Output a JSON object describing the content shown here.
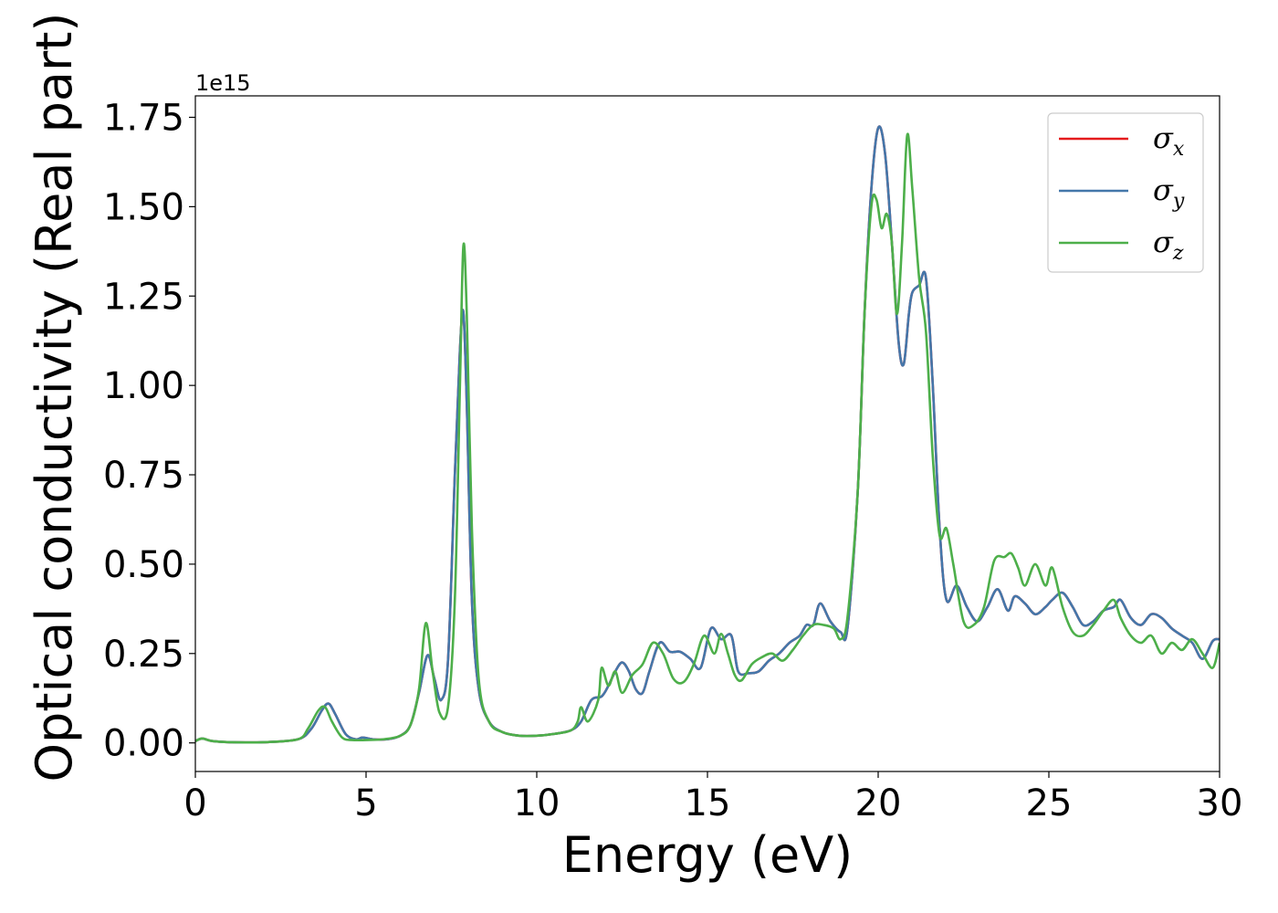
{
  "chart_data": {
    "type": "line",
    "xlabel": "Energy (eV)",
    "ylabel": "Optical conductivity (Real part)",
    "y_offset_text": "1e15",
    "xlim": [
      0,
      30
    ],
    "ylim": [
      -80000000000000.0,
      1810000000000000.0
    ],
    "xticks": [
      0,
      5,
      10,
      15,
      20,
      25,
      30
    ],
    "xtick_labels": [
      "0",
      "5",
      "10",
      "15",
      "20",
      "25",
      "30"
    ],
    "yticks": [
      0,
      250000000000000.0,
      500000000000000.0,
      750000000000000.0,
      1000000000000000.0,
      1250000000000000.0,
      1500000000000000.0,
      1750000000000000.0
    ],
    "ytick_labels": [
      "0.00",
      "0.25",
      "0.50",
      "0.75",
      "1.00",
      "1.25",
      "1.50",
      "1.75"
    ],
    "grid": false,
    "legend_position": "top-right",
    "series": [
      {
        "name": "σ",
        "subscript": "x",
        "color": "#e41a1c",
        "x": [
          0,
          0.2,
          0.5,
          1,
          2,
          3,
          3.4,
          3.7,
          3.9,
          4.1,
          4.4,
          4.7,
          4.9,
          5.2,
          5.6,
          6.0,
          6.3,
          6.55,
          6.8,
          7.0,
          7.2,
          7.4,
          7.6,
          7.75,
          7.85,
          7.95,
          8.1,
          8.3,
          8.6,
          9.0,
          9.5,
          10.0,
          10.5,
          11.0,
          11.3,
          11.6,
          11.9,
          12.1,
          12.3,
          12.5,
          12.7,
          12.9,
          13.1,
          13.3,
          13.6,
          13.9,
          14.2,
          14.5,
          14.8,
          15.1,
          15.4,
          15.7,
          15.9,
          16.2,
          16.5,
          16.8,
          17.1,
          17.4,
          17.7,
          17.9,
          18.1,
          18.3,
          18.6,
          18.9,
          19.1,
          19.4,
          19.6,
          19.8,
          20.0,
          20.2,
          20.4,
          20.6,
          20.75,
          20.9,
          21.0,
          21.2,
          21.4,
          21.6,
          21.8,
          22.0,
          22.3,
          22.6,
          22.9,
          23.2,
          23.5,
          23.8,
          24.0,
          24.3,
          24.6,
          24.9,
          25.1,
          25.4,
          25.7,
          26.0,
          26.3,
          26.6,
          26.9,
          27.1,
          27.4,
          27.7,
          28.0,
          28.3,
          28.6,
          28.9,
          29.2,
          29.5,
          29.8,
          30.0
        ],
        "values": [
          5000000000000.0,
          12000000000000.0,
          5000000000000.0,
          2000000000000.0,
          2000000000000.0,
          10000000000000.0,
          40000000000000.0,
          90000000000000.0,
          110000000000000.0,
          80000000000000.0,
          25000000000000.0,
          10000000000000.0,
          15000000000000.0,
          10000000000000.0,
          10000000000000.0,
          20000000000000.0,
          50000000000000.0,
          140000000000000.0,
          245000000000000.0,
          180000000000000.0,
          120000000000000.0,
          230000000000000.0,
          750000000000000.0,
          1100000000000000.0,
          1205000000000000.0,
          950000000000000.0,
          400000000000000.0,
          150000000000000.0,
          60000000000000.0,
          30000000000000.0,
          20000000000000.0,
          20000000000000.0,
          25000000000000.0,
          35000000000000.0,
          60000000000000.0,
          120000000000000.0,
          130000000000000.0,
          160000000000000.0,
          200000000000000.0,
          225000000000000.0,
          200000000000000.0,
          150000000000000.0,
          140000000000000.0,
          200000000000000.0,
          280000000000000.0,
          255000000000000.0,
          255000000000000.0,
          235000000000000.0,
          210000000000000.0,
          320000000000000.0,
          290000000000000.0,
          300000000000000.0,
          200000000000000.0,
          195000000000000.0,
          200000000000000.0,
          230000000000000.0,
          250000000000000.0,
          280000000000000.0,
          300000000000000.0,
          330000000000000.0,
          330000000000000.0,
          390000000000000.0,
          340000000000000.0,
          310000000000000.0,
          320000000000000.0,
          700000000000000.0,
          1200000000000000.0,
          1550000000000000.0,
          1720000000000000.0,
          1650000000000000.0,
          1400000000000000.0,
          1120000000000000.0,
          1060000000000000.0,
          1200000000000000.0,
          1260000000000000.0,
          1280000000000000.0,
          1300000000000000.0,
          1000000000000000.0,
          600000000000000.0,
          400000000000000.0,
          440000000000000.0,
          380000000000000.0,
          340000000000000.0,
          380000000000000.0,
          430000000000000.0,
          370000000000000.0,
          410000000000000.0,
          390000000000000.0,
          360000000000000.0,
          380000000000000.0,
          400000000000000.0,
          420000000000000.0,
          380000000000000.0,
          330000000000000.0,
          340000000000000.0,
          370000000000000.0,
          380000000000000.0,
          400000000000000.0,
          350000000000000.0,
          330000000000000.0,
          360000000000000.0,
          350000000000000.0,
          320000000000000.0,
          300000000000000.0,
          280000000000000.0,
          235000000000000.0,
          285000000000000.0,
          290000000000000.0
        ]
      },
      {
        "name": "σ",
        "subscript": "y",
        "color": "#4477aa",
        "x": [
          0,
          0.2,
          0.5,
          1,
          2,
          3,
          3.4,
          3.7,
          3.9,
          4.1,
          4.4,
          4.7,
          4.9,
          5.2,
          5.6,
          6.0,
          6.3,
          6.55,
          6.8,
          7.0,
          7.2,
          7.4,
          7.6,
          7.75,
          7.85,
          7.95,
          8.1,
          8.3,
          8.6,
          9.0,
          9.5,
          10.0,
          10.5,
          11.0,
          11.3,
          11.6,
          11.9,
          12.1,
          12.3,
          12.5,
          12.7,
          12.9,
          13.1,
          13.3,
          13.6,
          13.9,
          14.2,
          14.5,
          14.8,
          15.1,
          15.4,
          15.7,
          15.9,
          16.2,
          16.5,
          16.8,
          17.1,
          17.4,
          17.7,
          17.9,
          18.1,
          18.3,
          18.6,
          18.9,
          19.1,
          19.4,
          19.6,
          19.8,
          20.0,
          20.2,
          20.4,
          20.6,
          20.75,
          20.9,
          21.0,
          21.2,
          21.4,
          21.6,
          21.8,
          22.0,
          22.3,
          22.6,
          22.9,
          23.2,
          23.5,
          23.8,
          24.0,
          24.3,
          24.6,
          24.9,
          25.1,
          25.4,
          25.7,
          26.0,
          26.3,
          26.6,
          26.9,
          27.1,
          27.4,
          27.7,
          28.0,
          28.3,
          28.6,
          28.9,
          29.2,
          29.5,
          29.8,
          30.0
        ],
        "values": [
          5000000000000.0,
          12000000000000.0,
          5000000000000.0,
          2000000000000.0,
          2000000000000.0,
          10000000000000.0,
          40000000000000.0,
          90000000000000.0,
          110000000000000.0,
          80000000000000.0,
          25000000000000.0,
          10000000000000.0,
          15000000000000.0,
          10000000000000.0,
          10000000000000.0,
          20000000000000.0,
          50000000000000.0,
          140000000000000.0,
          245000000000000.0,
          180000000000000.0,
          120000000000000.0,
          230000000000000.0,
          750000000000000.0,
          1100000000000000.0,
          1205000000000000.0,
          950000000000000.0,
          400000000000000.0,
          150000000000000.0,
          60000000000000.0,
          30000000000000.0,
          20000000000000.0,
          20000000000000.0,
          25000000000000.0,
          35000000000000.0,
          60000000000000.0,
          120000000000000.0,
          130000000000000.0,
          160000000000000.0,
          200000000000000.0,
          225000000000000.0,
          200000000000000.0,
          150000000000000.0,
          140000000000000.0,
          200000000000000.0,
          280000000000000.0,
          255000000000000.0,
          255000000000000.0,
          235000000000000.0,
          210000000000000.0,
          320000000000000.0,
          290000000000000.0,
          300000000000000.0,
          200000000000000.0,
          195000000000000.0,
          200000000000000.0,
          230000000000000.0,
          250000000000000.0,
          280000000000000.0,
          300000000000000.0,
          330000000000000.0,
          330000000000000.0,
          390000000000000.0,
          340000000000000.0,
          310000000000000.0,
          320000000000000.0,
          700000000000000.0,
          1200000000000000.0,
          1550000000000000.0,
          1720000000000000.0,
          1650000000000000.0,
          1400000000000000.0,
          1120000000000000.0,
          1060000000000000.0,
          1200000000000000.0,
          1260000000000000.0,
          1280000000000000.0,
          1300000000000000.0,
          1000000000000000.0,
          600000000000000.0,
          400000000000000.0,
          440000000000000.0,
          380000000000000.0,
          340000000000000.0,
          380000000000000.0,
          430000000000000.0,
          370000000000000.0,
          410000000000000.0,
          390000000000000.0,
          360000000000000.0,
          380000000000000.0,
          400000000000000.0,
          420000000000000.0,
          380000000000000.0,
          330000000000000.0,
          340000000000000.0,
          370000000000000.0,
          380000000000000.0,
          400000000000000.0,
          350000000000000.0,
          330000000000000.0,
          360000000000000.0,
          350000000000000.0,
          320000000000000.0,
          300000000000000.0,
          280000000000000.0,
          235000000000000.0,
          285000000000000.0,
          290000000000000.0
        ]
      },
      {
        "name": "σ",
        "subscript": "z",
        "color": "#4daf4a",
        "x": [
          0,
          0.2,
          0.5,
          1,
          2,
          3,
          3.3,
          3.6,
          3.8,
          4.0,
          4.3,
          4.6,
          5.0,
          5.5,
          6.0,
          6.3,
          6.55,
          6.75,
          6.95,
          7.15,
          7.4,
          7.6,
          7.75,
          7.85,
          7.95,
          8.1,
          8.3,
          8.6,
          9.0,
          9.5,
          10.0,
          10.5,
          11.0,
          11.2,
          11.3,
          11.5,
          11.8,
          11.9,
          12.1,
          12.3,
          12.5,
          12.8,
          13.1,
          13.4,
          13.7,
          14.0,
          14.3,
          14.6,
          14.9,
          15.2,
          15.4,
          15.6,
          15.8,
          16.0,
          16.3,
          16.6,
          16.9,
          17.2,
          17.5,
          17.8,
          18.1,
          18.4,
          18.7,
          18.9,
          19.1,
          19.4,
          19.6,
          19.8,
          19.95,
          20.1,
          20.25,
          20.4,
          20.55,
          20.7,
          20.85,
          21.0,
          21.2,
          21.4,
          21.6,
          21.8,
          22.0,
          22.2,
          22.5,
          22.8,
          23.1,
          23.4,
          23.7,
          23.9,
          24.1,
          24.3,
          24.6,
          24.9,
          25.1,
          25.4,
          25.7,
          26.0,
          26.3,
          26.6,
          26.9,
          27.1,
          27.4,
          27.7,
          28.0,
          28.3,
          28.6,
          28.9,
          29.2,
          29.5,
          29.8,
          30.0
        ],
        "values": [
          5000000000000.0,
          12000000000000.0,
          5000000000000.0,
          2000000000000.0,
          2000000000000.0,
          10000000000000.0,
          40000000000000.0,
          90000000000000.0,
          100000000000000.0,
          60000000000000.0,
          15000000000000.0,
          8000000000000.0,
          8000000000000.0,
          10000000000000.0,
          20000000000000.0,
          50000000000000.0,
          150000000000000.0,
          335000000000000.0,
          200000000000000.0,
          85000000000000.0,
          100000000000000.0,
          400000000000000.0,
          1000000000000000.0,
          1390000000000000.0,
          1200000000000000.0,
          600000000000000.0,
          180000000000000.0,
          60000000000000.0,
          30000000000000.0,
          20000000000000.0,
          20000000000000.0,
          25000000000000.0,
          35000000000000.0,
          60000000000000.0,
          100000000000000.0,
          60000000000000.0,
          120000000000000.0,
          210000000000000.0,
          160000000000000.0,
          200000000000000.0,
          140000000000000.0,
          190000000000000.0,
          220000000000000.0,
          280000000000000.0,
          250000000000000.0,
          180000000000000.0,
          170000000000000.0,
          220000000000000.0,
          300000000000000.0,
          250000000000000.0,
          305000000000000.0,
          250000000000000.0,
          190000000000000.0,
          175000000000000.0,
          220000000000000.0,
          240000000000000.0,
          250000000000000.0,
          230000000000000.0,
          260000000000000.0,
          300000000000000.0,
          330000000000000.0,
          330000000000000.0,
          320000000000000.0,
          290000000000000.0,
          350000000000000.0,
          700000000000000.0,
          1200000000000000.0,
          1500000000000000.0,
          1520000000000000.0,
          1440000000000000.0,
          1480000000000000.0,
          1400000000000000.0,
          1200000000000000.0,
          1400000000000000.0,
          1700000000000000.0,
          1550000000000000.0,
          1300000000000000.0,
          1150000000000000.0,
          800000000000000.0,
          580000000000000.0,
          600000000000000.0,
          500000000000000.0,
          340000000000000.0,
          330000000000000.0,
          380000000000000.0,
          510000000000000.0,
          520000000000000.0,
          530000000000000.0,
          490000000000000.0,
          440000000000000.0,
          500000000000000.0,
          440000000000000.0,
          490000000000000.0,
          380000000000000.0,
          310000000000000.0,
          300000000000000.0,
          330000000000000.0,
          370000000000000.0,
          400000000000000.0,
          350000000000000.0,
          300000000000000.0,
          280000000000000.0,
          300000000000000.0,
          250000000000000.0,
          280000000000000.0,
          260000000000000.0,
          290000000000000.0,
          250000000000000.0,
          210000000000000.0,
          280000000000000.0
        ]
      }
    ]
  }
}
